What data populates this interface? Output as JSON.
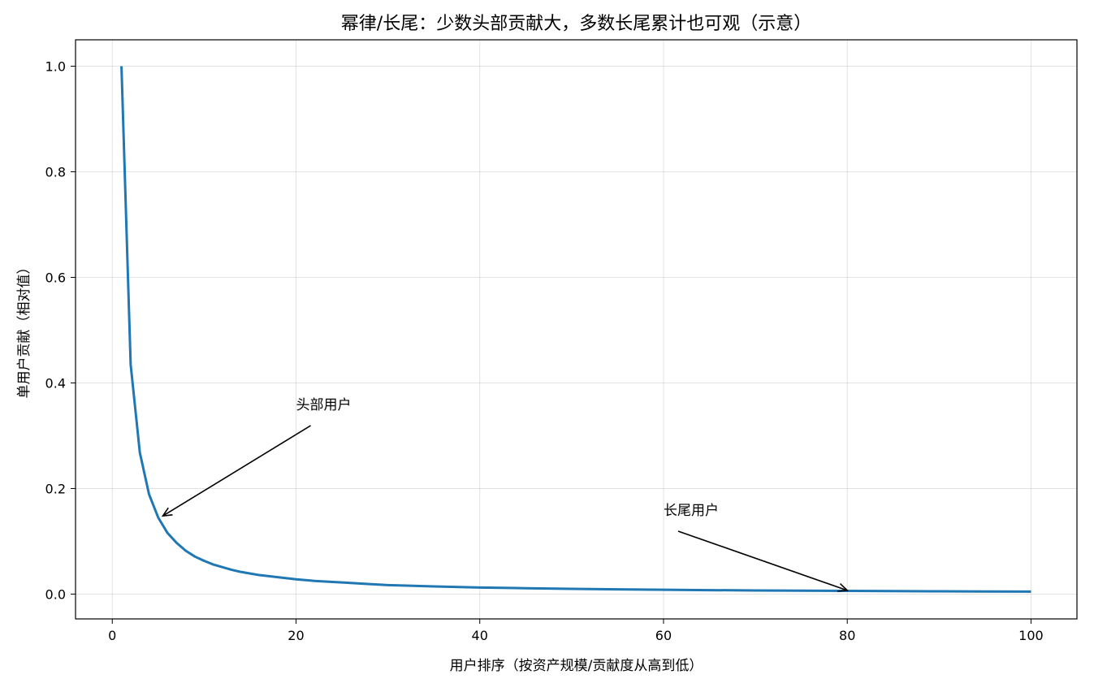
{
  "chart_data": {
    "type": "line",
    "title": "幂律/长尾：少数头部贡献大，多数长尾累计也可观（示意）",
    "xlabel": "用户排序（按资产规模/贡献度从高到低）",
    "ylabel": "单用户贡献（相对值）",
    "xlim": [
      -4,
      105
    ],
    "ylim": [
      -0.047,
      1.05
    ],
    "x_ticks": [
      0,
      20,
      40,
      60,
      80,
      100
    ],
    "y_ticks": [
      0.0,
      0.2,
      0.4,
      0.6,
      0.8,
      1.0
    ],
    "x_tick_labels": [
      "0",
      "20",
      "40",
      "60",
      "80",
      "100"
    ],
    "y_tick_labels": [
      "0.0",
      "0.2",
      "0.4",
      "0.6",
      "0.8",
      "1.0"
    ],
    "grid": true,
    "series": [
      {
        "color": "#1f77b4",
        "x": [
          1,
          2,
          3,
          4,
          5,
          6,
          7,
          8,
          9,
          10,
          11,
          12,
          13,
          14,
          15,
          16,
          18,
          20,
          22,
          25,
          28,
          30,
          35,
          40,
          45,
          50,
          55,
          60,
          65,
          70,
          75,
          80,
          85,
          90,
          95,
          100
        ],
        "y": [
          1.0,
          0.435,
          0.268,
          0.189,
          0.145,
          0.116,
          0.097,
          0.082,
          0.071,
          0.063,
          0.056,
          0.051,
          0.046,
          0.042,
          0.039,
          0.036,
          0.032,
          0.028,
          0.025,
          0.022,
          0.019,
          0.017,
          0.0145,
          0.0125,
          0.0111,
          0.0099,
          0.009,
          0.0082,
          0.0075,
          0.0069,
          0.0064,
          0.006,
          0.0056,
          0.0053,
          0.005,
          0.0047
        ]
      }
    ],
    "annotations": [
      {
        "text": "头部用户",
        "text_x": 20,
        "text_y": 0.35,
        "target_x": 5.5,
        "target_y": 0.148
      },
      {
        "text": "长尾用户",
        "text_x": 60,
        "text_y": 0.15,
        "target_x": 80,
        "target_y": 0.007
      }
    ]
  }
}
